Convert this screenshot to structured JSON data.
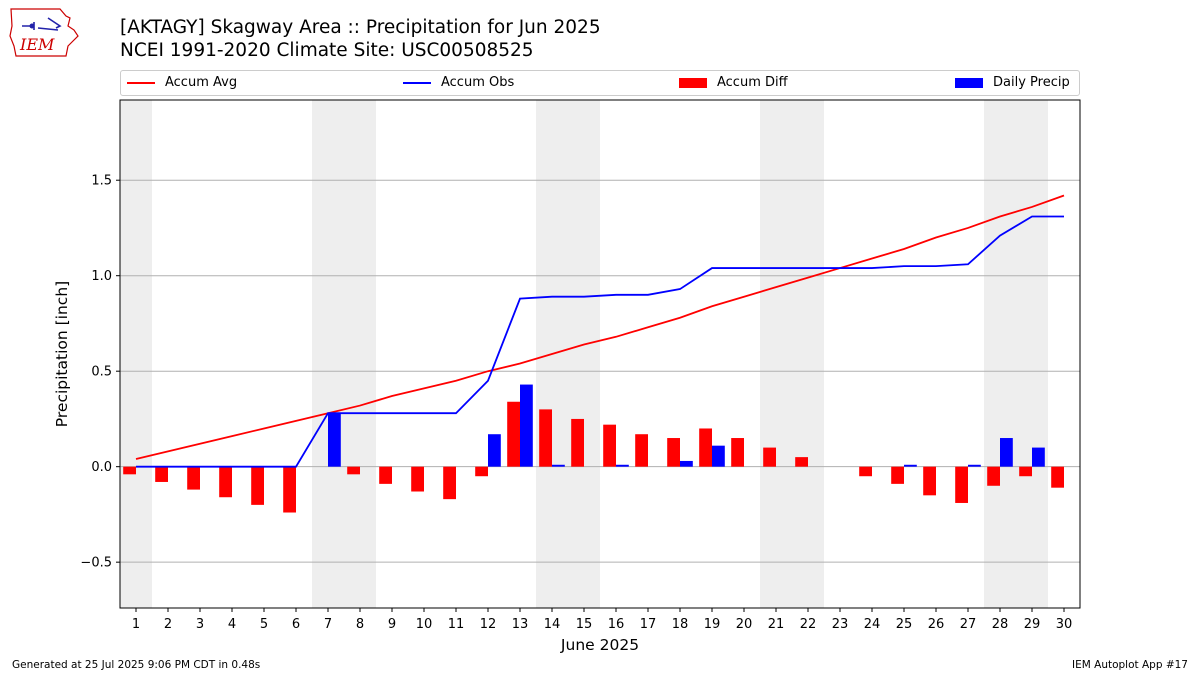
{
  "header": {
    "title_line1": "[AKTAGY] Skagway Area :: Precipitation for Jun 2025",
    "title_line2": "NCEI 1991-2020 Climate Site: USC00508525"
  },
  "logo": {
    "text": "IEM",
    "color": "#cc0000"
  },
  "legend": [
    {
      "label": "Accum Avg",
      "kind": "line",
      "color": "#ff0000"
    },
    {
      "label": "Accum Obs",
      "kind": "line",
      "color": "#0000ff"
    },
    {
      "label": "Accum Diff",
      "kind": "bar",
      "color": "#ff0000"
    },
    {
      "label": "Daily Precip",
      "kind": "bar",
      "color": "#0000ff"
    }
  ],
  "footer": {
    "left": "Generated at 25 Jul 2025 9:06 PM CDT in 0.48s",
    "right": "IEM Autoplot App #17"
  },
  "chart_data": {
    "type": "bar",
    "xlabel": "June 2025",
    "ylabel": "Precipitation [inch]",
    "ylim": [
      -0.74,
      1.92
    ],
    "yticks": [
      -0.5,
      0.0,
      0.5,
      1.0,
      1.5
    ],
    "ytick_labels": [
      "−0.5",
      "0.0",
      "0.5",
      "1.0",
      "1.5"
    ],
    "grid": true,
    "weekend_shading_days": [
      1,
      7,
      8,
      14,
      15,
      21,
      22,
      28,
      29
    ],
    "weekend_color": "#eeeeee",
    "days": [
      1,
      2,
      3,
      4,
      5,
      6,
      7,
      8,
      9,
      10,
      11,
      12,
      13,
      14,
      15,
      16,
      17,
      18,
      19,
      20,
      21,
      22,
      23,
      24,
      25,
      26,
      27,
      28,
      29,
      30
    ],
    "series": [
      {
        "name": "Accum Avg",
        "kind": "line",
        "color": "#ff0000",
        "values": [
          0.04,
          0.08,
          0.12,
          0.16,
          0.2,
          0.24,
          0.28,
          0.32,
          0.37,
          0.41,
          0.45,
          0.5,
          0.54,
          0.59,
          0.64,
          0.68,
          0.73,
          0.78,
          0.84,
          0.89,
          0.94,
          0.99,
          1.04,
          1.09,
          1.14,
          1.2,
          1.25,
          1.31,
          1.36,
          1.42
        ]
      },
      {
        "name": "Accum Obs",
        "kind": "line",
        "color": "#0000ff",
        "values": [
          0.0,
          0.0,
          0.0,
          0.0,
          0.0,
          0.0,
          0.28,
          0.28,
          0.28,
          0.28,
          0.28,
          0.45,
          0.88,
          0.89,
          0.89,
          0.9,
          0.9,
          0.93,
          1.04,
          1.04,
          1.04,
          1.04,
          1.04,
          1.04,
          1.05,
          1.05,
          1.06,
          1.21,
          1.31,
          1.31
        ]
      },
      {
        "name": "Accum Diff",
        "kind": "bar",
        "color": "#ff0000",
        "values": [
          -0.04,
          -0.08,
          -0.12,
          -0.16,
          -0.2,
          -0.24,
          0.0,
          -0.04,
          -0.09,
          -0.13,
          -0.17,
          -0.05,
          0.34,
          0.3,
          0.25,
          0.22,
          0.17,
          0.15,
          0.2,
          0.15,
          0.1,
          0.05,
          0.0,
          -0.05,
          -0.09,
          -0.15,
          -0.19,
          -0.1,
          -0.05,
          -0.11
        ]
      },
      {
        "name": "Daily Precip",
        "kind": "bar",
        "color": "#0000ff",
        "values": [
          0,
          0,
          0,
          0,
          0,
          0,
          0.28,
          0,
          0,
          0,
          0,
          0.17,
          0.43,
          0.01,
          0,
          0.01,
          0,
          0.03,
          0.11,
          0,
          0,
          0,
          0,
          0,
          0.01,
          0,
          0.01,
          0.15,
          0.1,
          0
        ]
      }
    ]
  }
}
